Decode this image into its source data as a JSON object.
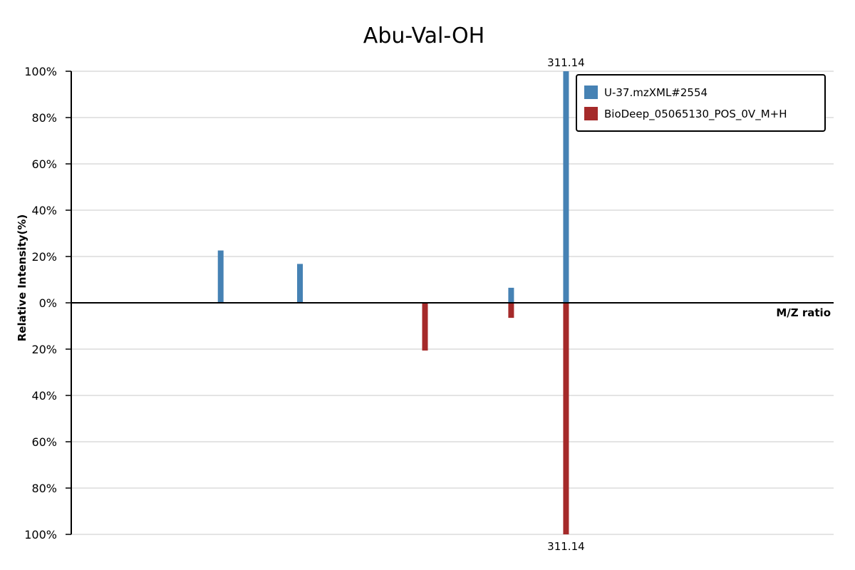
{
  "chart_data": {
    "type": "bar",
    "title": "Abu-Val-OH",
    "xlabel": "M/Z ratio",
    "ylabel": "Relative Intensity(%)",
    "x_range": [
      0,
      100
    ],
    "ylim": [
      -100,
      100
    ],
    "y_ticks": [
      {
        "value": 100,
        "label": "100%"
      },
      {
        "value": 80,
        "label": "80%"
      },
      {
        "value": 60,
        "label": "60%"
      },
      {
        "value": 40,
        "label": "40%"
      },
      {
        "value": 20,
        "label": "20%"
      },
      {
        "value": 0,
        "label": "0%"
      },
      {
        "value": -20,
        "label": "20%"
      },
      {
        "value": -40,
        "label": "40%"
      },
      {
        "value": -60,
        "label": "60%"
      },
      {
        "value": -80,
        "label": "80%"
      },
      {
        "value": -100,
        "label": "100%"
      }
    ],
    "grid": true,
    "legend_position": "top-right",
    "series": [
      {
        "name": "U-37.mzXML#2554",
        "color": "#4682b4",
        "direction": "up",
        "peaks": [
          {
            "x": 19.6,
            "y": 22.6
          },
          {
            "x": 30.0,
            "y": 16.8
          },
          {
            "x": 57.7,
            "y": 6.5
          },
          {
            "x": 64.9,
            "y": 100,
            "label": "311.14"
          }
        ]
      },
      {
        "name": "BioDeep_05065130_POS_0V_M+H",
        "color": "#a52a2a",
        "direction": "down",
        "peaks": [
          {
            "x": 46.4,
            "y": 20.6
          },
          {
            "x": 57.7,
            "y": 6.5
          },
          {
            "x": 64.9,
            "y": 100,
            "label": "311.14"
          }
        ]
      }
    ]
  }
}
